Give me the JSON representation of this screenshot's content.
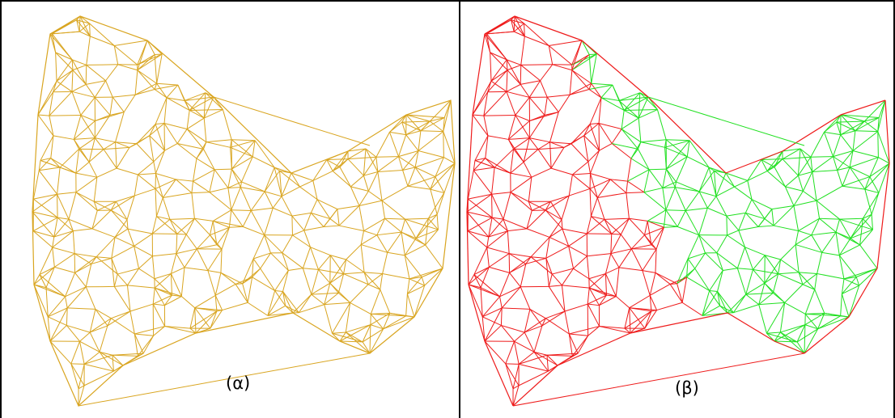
{
  "figure": {
    "panels": [
      {
        "caption": "(α)",
        "mesh_color": "#d9a520"
      },
      {
        "caption": "(β)",
        "colors": {
          "red_region": "#ee1b1b",
          "green_region": "#20e020"
        }
      }
    ]
  }
}
